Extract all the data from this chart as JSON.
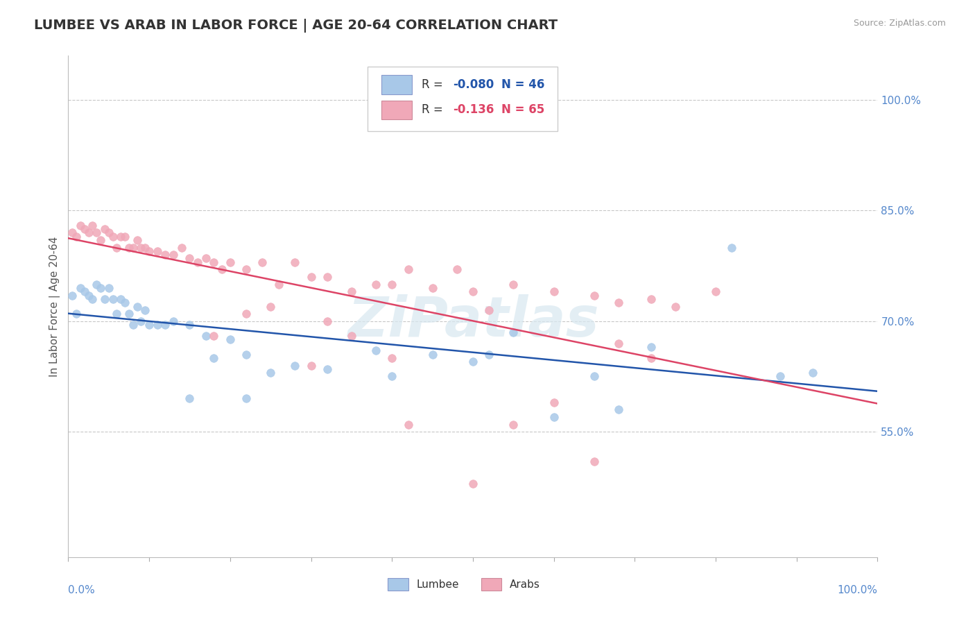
{
  "title": "LUMBEE VS ARAB IN LABOR FORCE | AGE 20-64 CORRELATION CHART",
  "source": "Source: ZipAtlas.com",
  "ylabel": "In Labor Force | Age 20-64",
  "legend_lumbee_R": "-0.080",
  "legend_lumbee_N": "46",
  "legend_arab_R": "-0.136",
  "legend_arab_N": "65",
  "lumbee_color": "#a8c8e8",
  "arab_color": "#f0a8b8",
  "lumbee_line_color": "#2255aa",
  "arab_line_color": "#dd4466",
  "ytick_labels": [
    "55.0%",
    "70.0%",
    "85.0%",
    "100.0%"
  ],
  "ytick_values": [
    0.55,
    0.7,
    0.85,
    1.0
  ],
  "xlim": [
    0.0,
    1.0
  ],
  "ylim": [
    0.38,
    1.06
  ],
  "watermark": "ZiPatlas",
  "title_fontsize": 14,
  "label_fontsize": 11,
  "tick_fontsize": 11,
  "background_color": "#ffffff",
  "grid_color": "#c8c8c8",
  "axis_color": "#5588cc",
  "lumbee_x": [
    0.005,
    0.01,
    0.015,
    0.02,
    0.025,
    0.03,
    0.035,
    0.04,
    0.045,
    0.05,
    0.055,
    0.06,
    0.065,
    0.07,
    0.075,
    0.08,
    0.085,
    0.09,
    0.095,
    0.1,
    0.11,
    0.12,
    0.13,
    0.15,
    0.17,
    0.18,
    0.2,
    0.22,
    0.25,
    0.28,
    0.32,
    0.38,
    0.4,
    0.45,
    0.5,
    0.52,
    0.55,
    0.6,
    0.65,
    0.68,
    0.72,
    0.82,
    0.88,
    0.92,
    0.15,
    0.22
  ],
  "lumbee_y": [
    0.735,
    0.71,
    0.745,
    0.74,
    0.735,
    0.73,
    0.75,
    0.745,
    0.73,
    0.745,
    0.73,
    0.71,
    0.73,
    0.725,
    0.71,
    0.695,
    0.72,
    0.7,
    0.715,
    0.695,
    0.695,
    0.695,
    0.7,
    0.695,
    0.68,
    0.65,
    0.675,
    0.655,
    0.63,
    0.64,
    0.635,
    0.66,
    0.625,
    0.655,
    0.645,
    0.655,
    0.685,
    0.57,
    0.625,
    0.58,
    0.665,
    0.8,
    0.625,
    0.63,
    0.595,
    0.595
  ],
  "arab_x": [
    0.005,
    0.01,
    0.015,
    0.02,
    0.025,
    0.03,
    0.035,
    0.04,
    0.045,
    0.05,
    0.055,
    0.06,
    0.065,
    0.07,
    0.075,
    0.08,
    0.085,
    0.09,
    0.095,
    0.1,
    0.11,
    0.12,
    0.13,
    0.14,
    0.15,
    0.16,
    0.17,
    0.18,
    0.19,
    0.2,
    0.22,
    0.24,
    0.26,
    0.28,
    0.3,
    0.32,
    0.35,
    0.38,
    0.4,
    0.42,
    0.45,
    0.48,
    0.5,
    0.55,
    0.6,
    0.65,
    0.68,
    0.72,
    0.75,
    0.8,
    0.18,
    0.22,
    0.3,
    0.35,
    0.42,
    0.5,
    0.55,
    0.6,
    0.68,
    0.72,
    0.25,
    0.32,
    0.4,
    0.52,
    0.65
  ],
  "arab_y": [
    0.82,
    0.815,
    0.83,
    0.825,
    0.82,
    0.83,
    0.82,
    0.81,
    0.825,
    0.82,
    0.815,
    0.8,
    0.815,
    0.815,
    0.8,
    0.8,
    0.81,
    0.8,
    0.8,
    0.795,
    0.795,
    0.79,
    0.79,
    0.8,
    0.785,
    0.78,
    0.785,
    0.78,
    0.77,
    0.78,
    0.77,
    0.78,
    0.75,
    0.78,
    0.76,
    0.76,
    0.74,
    0.75,
    0.75,
    0.77,
    0.745,
    0.77,
    0.74,
    0.75,
    0.74,
    0.735,
    0.725,
    0.73,
    0.72,
    0.74,
    0.68,
    0.71,
    0.64,
    0.68,
    0.56,
    0.48,
    0.56,
    0.59,
    0.67,
    0.65,
    0.72,
    0.7,
    0.65,
    0.715,
    0.51
  ]
}
